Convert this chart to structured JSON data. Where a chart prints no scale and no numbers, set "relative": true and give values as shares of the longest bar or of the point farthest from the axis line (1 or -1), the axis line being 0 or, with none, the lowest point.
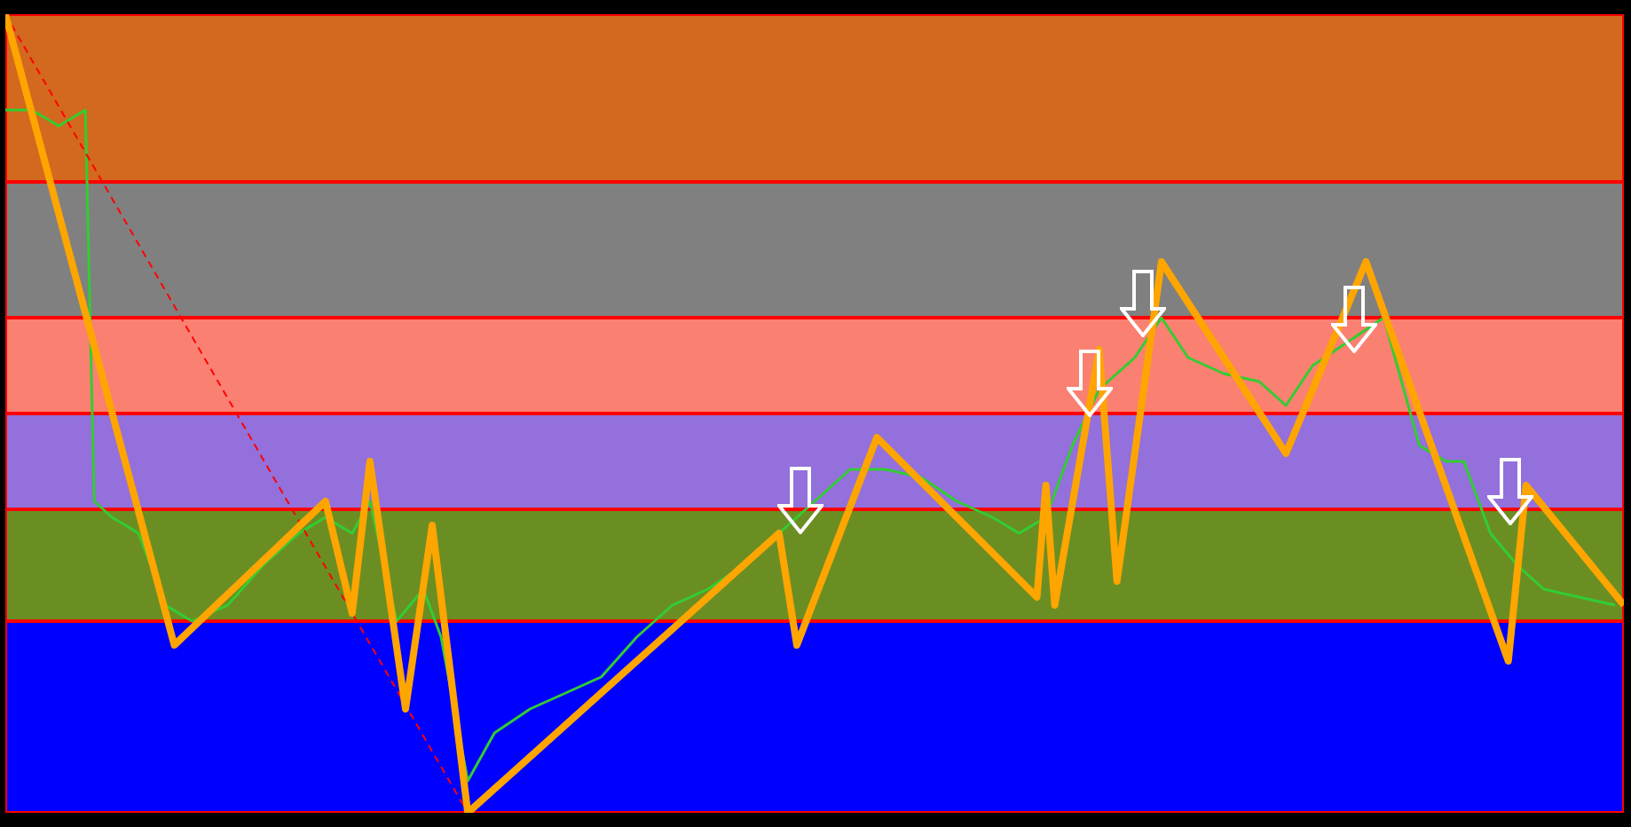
{
  "chart_data": {
    "type": "line",
    "relative": true,
    "categories": [
      null,
      null,
      null,
      null,
      null,
      null,
      null,
      null,
      null,
      null,
      null,
      null,
      null,
      null,
      null,
      null,
      null,
      null,
      null,
      null,
      null,
      null,
      null,
      null,
      null,
      null,
      null,
      null,
      null,
      null,
      null,
      null,
      null,
      null,
      null,
      null,
      null,
      null,
      null,
      null,
      null,
      null,
      null,
      null,
      null,
      null,
      null,
      null,
      null,
      null,
      null,
      null,
      null,
      null,
      null,
      null,
      null,
      null,
      null,
      null,
      null,
      null,
      null,
      null,
      null,
      null,
      null,
      null,
      null,
      null,
      null,
      null,
      null,
      null,
      null,
      null,
      null,
      null,
      null,
      null,
      null,
      null,
      null,
      null,
      null,
      null,
      null,
      null,
      null,
      null,
      null,
      null,
      null,
      null,
      null,
      null,
      null,
      null,
      null,
      null,
      null,
      null,
      null,
      null,
      null,
      null,
      null,
      null,
      null,
      null,
      null,
      null,
      null,
      null,
      null,
      null,
      null,
      null,
      null,
      null,
      null,
      null,
      null,
      null,
      null,
      null,
      null,
      null,
      null,
      null,
      null,
      null,
      null,
      null,
      null,
      null,
      null,
      null,
      null,
      null,
      null,
      null,
      null,
      null,
      null,
      null,
      null,
      null,
      null,
      null,
      null,
      null,
      null,
      null,
      null,
      null,
      null,
      null,
      null,
      null,
      null,
      null,
      null,
      null,
      null,
      null,
      null,
      null,
      null,
      null,
      null,
      null,
      null,
      null,
      null,
      null,
      null,
      null,
      null,
      null,
      null,
      null,
      null
    ],
    "series": [
      {
        "color": "#32cd32",
        "values": [
          0.88,
          null,
          null,
          0.88,
          null,
          null,
          0.86,
          null,
          null,
          0.88,
          0.39,
          null,
          0.37,
          null,
          null,
          0.35,
          null,
          null,
          0.26,
          null,
          null,
          0.24,
          null,
          null,
          null,
          0.26,
          null,
          null,
          null,
          0.31,
          null,
          null,
          null,
          0.35,
          null,
          null,
          0.37,
          null,
          null,
          0.35,
          null,
          0.39,
          null,
          null,
          0.24,
          null,
          null,
          0.28,
          null,
          0.22,
          null,
          null,
          0.04,
          null,
          null,
          0.1,
          null,
          null,
          null,
          0.13,
          null,
          null,
          null,
          0.15,
          null,
          null,
          null,
          0.17,
          null,
          null,
          null,
          0.22,
          null,
          null,
          null,
          0.26,
          null,
          null,
          null,
          0.28,
          null,
          null,
          null,
          0.31,
          null,
          null,
          null,
          0.35,
          null,
          null,
          null,
          0.39,
          null,
          null,
          null,
          0.43,
          null,
          null,
          null,
          0.43,
          null,
          null,
          null,
          0.42,
          null,
          null,
          null,
          0.39,
          null,
          null,
          null,
          0.37,
          null,
          null,
          0.35,
          null,
          null,
          0.37,
          null,
          null,
          0.46,
          null,
          null,
          0.53,
          null,
          null,
          null,
          0.57,
          null,
          null,
          0.62,
          null,
          null,
          0.57,
          null,
          null,
          null,
          0.55,
          null,
          null,
          null,
          0.54,
          null,
          null,
          0.51,
          null,
          null,
          0.56,
          null,
          null,
          null,
          0.59,
          null,
          null,
          null,
          0.62,
          null,
          null,
          null,
          0.46,
          null,
          null,
          0.44,
          null,
          0.44,
          null,
          null,
          0.35,
          null,
          null,
          0.31,
          null,
          null,
          0.28,
          null,
          null,
          null,
          0.27,
          null,
          null,
          null,
          0.26,
          null
        ]
      },
      {
        "color": "#ff0000",
        "line_style": "dashed",
        "values": [
          1,
          null,
          null,
          null,
          null,
          null,
          null,
          null,
          null,
          null,
          null,
          null,
          null,
          null,
          null,
          null,
          null,
          null,
          null,
          null,
          null,
          null,
          null,
          null,
          null,
          null,
          null,
          null,
          null,
          null,
          null,
          null,
          null,
          null,
          null,
          null,
          null,
          null,
          null,
          null,
          null,
          null,
          null,
          null,
          null,
          null,
          null,
          null,
          null,
          null,
          null,
          null,
          0,
          null,
          null,
          null,
          null,
          null,
          null,
          null,
          null,
          null,
          null,
          null,
          null,
          null,
          null,
          null,
          null,
          null,
          null,
          null,
          null,
          null,
          null,
          null,
          null,
          null,
          null,
          null,
          null,
          null,
          null,
          null,
          null,
          null,
          null,
          null,
          null,
          null,
          null,
          null,
          null,
          null,
          null,
          null,
          null,
          null,
          null,
          null,
          null,
          null,
          null,
          null,
          null,
          null,
          null,
          null,
          null,
          null,
          null,
          null,
          null,
          null,
          null,
          null,
          null,
          null,
          null,
          null,
          null,
          null,
          null,
          null,
          null,
          null,
          null,
          null,
          null,
          null,
          null,
          null,
          null,
          null,
          null,
          null,
          null,
          null,
          null,
          null,
          null,
          null,
          null,
          null,
          null,
          null,
          null,
          null,
          null,
          null,
          null,
          null,
          null,
          null,
          null,
          null,
          null,
          null,
          null,
          null,
          null,
          null,
          null,
          null,
          null,
          null,
          null,
          null,
          null,
          null,
          null,
          null,
          null,
          null,
          null,
          null,
          null,
          null,
          null,
          null,
          null,
          null,
          null
        ]
      },
      {
        "color": "#ffa500",
        "values": [
          1,
          null,
          null,
          null,
          null,
          null,
          null,
          null,
          null,
          null,
          null,
          null,
          null,
          null,
          null,
          null,
          null,
          null,
          null,
          0.21,
          null,
          null,
          null,
          null,
          null,
          null,
          null,
          null,
          null,
          null,
          null,
          null,
          null,
          null,
          null,
          null,
          0.39,
          null,
          null,
          0.25,
          null,
          0.44,
          null,
          null,
          null,
          0.13,
          null,
          null,
          0.36,
          null,
          null,
          null,
          0,
          null,
          null,
          null,
          null,
          null,
          null,
          null,
          null,
          null,
          null,
          null,
          null,
          null,
          null,
          null,
          null,
          null,
          null,
          null,
          null,
          null,
          null,
          null,
          null,
          null,
          null,
          null,
          null,
          null,
          null,
          null,
          null,
          null,
          null,
          0.35,
          null,
          0.21,
          null,
          null,
          null,
          null,
          null,
          null,
          null,
          null,
          0.47,
          null,
          null,
          null,
          null,
          null,
          null,
          null,
          null,
          null,
          null,
          null,
          null,
          null,
          null,
          null,
          null,
          null,
          0.27,
          0.41,
          0.26,
          null,
          null,
          null,
          null,
          0.58,
          null,
          0.29,
          null,
          null,
          null,
          null,
          0.69,
          null,
          null,
          null,
          null,
          null,
          null,
          null,
          null,
          null,
          null,
          null,
          null,
          null,
          0.45,
          null,
          null,
          null,
          null,
          null,
          null,
          null,
          null,
          0.69,
          null,
          null,
          null,
          null,
          null,
          null,
          null,
          null,
          null,
          null,
          null,
          null,
          null,
          null,
          null,
          0.19,
          null,
          0.41,
          null,
          null,
          null,
          null,
          null,
          null,
          null,
          null,
          null,
          null,
          0.26
        ]
      }
    ],
    "bands": [
      {
        "axis": "y",
        "from": 0.79,
        "to": 1,
        "color": "#d2691e"
      },
      {
        "axis": "y",
        "from": 0.62,
        "to": 0.79,
        "color": "#808080"
      },
      {
        "axis": "y",
        "from": 0.5,
        "to": 0.62,
        "color": "#fa8072"
      },
      {
        "axis": "y",
        "from": 0.38,
        "to": 0.5,
        "color": "#9370db"
      },
      {
        "axis": "y",
        "from": 0.24,
        "to": 0.38,
        "color": "#6b8e23"
      },
      {
        "axis": "y",
        "from": 0,
        "to": 0.24,
        "color": "#0000ff"
      }
    ]
  }
}
